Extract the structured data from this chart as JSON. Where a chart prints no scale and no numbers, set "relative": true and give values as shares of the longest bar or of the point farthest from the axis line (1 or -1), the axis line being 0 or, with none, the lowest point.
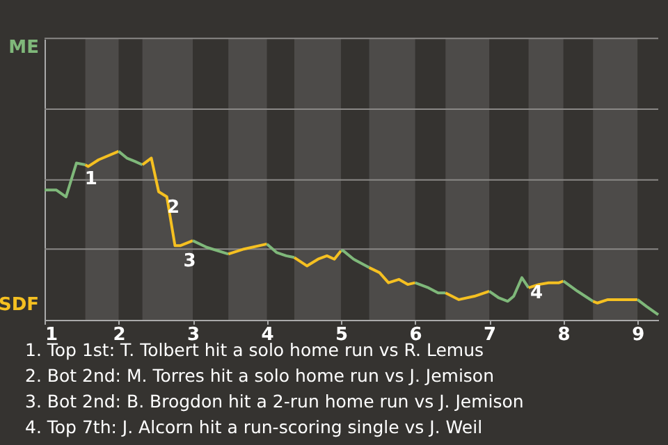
{
  "chart_data": {
    "type": "line",
    "relative": true,
    "xlim": [
      1,
      9.28
    ],
    "xticks": [
      1,
      2,
      3,
      4,
      5,
      6,
      7,
      8,
      9
    ],
    "marker": "none",
    "line_style": "solid",
    "ref_lines": [
      {
        "axis": "y",
        "value": 0.42,
        "color": "#8a8886"
      },
      {
        "axis": "y",
        "value": 0.83,
        "color": "#8a8886"
      },
      {
        "axis": "y",
        "value": 1.25,
        "color": "#8a8886"
      },
      {
        "axis": "y",
        "value": 1.67,
        "color": "#8a8886"
      }
    ],
    "bands": [
      {
        "axis": "x",
        "from": 1.55,
        "to": 2,
        "color": "#4d4b49"
      },
      {
        "axis": "x",
        "from": 2.32,
        "to": 3,
        "color": "#4d4b49"
      },
      {
        "axis": "x",
        "from": 3.48,
        "to": 4,
        "color": "#4d4b49"
      },
      {
        "axis": "x",
        "from": 4.37,
        "to": 5,
        "color": "#4d4b49"
      },
      {
        "axis": "x",
        "from": 5.38,
        "to": 6,
        "color": "#4d4b49"
      },
      {
        "axis": "x",
        "from": 6.41,
        "to": 7,
        "color": "#4d4b49"
      },
      {
        "axis": "x",
        "from": 7.53,
        "to": 8,
        "color": "#4d4b49"
      },
      {
        "axis": "x",
        "from": 8.4,
        "to": 9,
        "color": "#4d4b49"
      }
    ],
    "series": [
      {
        "color": "#7fb87a",
        "x": [
          1.0,
          1.16,
          1.29,
          1.43,
          1.55
        ],
        "values": [
          0.77,
          0.77,
          0.73,
          0.93,
          0.92
        ]
      },
      {
        "color": "#f5c021",
        "x": [
          1.55,
          1.59,
          1.73,
          2.0
        ],
        "values": [
          0.92,
          0.91,
          0.95,
          1.0
        ]
      },
      {
        "color": "#7fb87a",
        "x": [
          2.0,
          2.11,
          2.22,
          2.32
        ],
        "values": [
          1.0,
          0.96,
          0.94,
          0.92
        ]
      },
      {
        "color": "#f5c021",
        "x": [
          2.32,
          2.35,
          2.44,
          2.54,
          2.65,
          2.76,
          2.83,
          3.0
        ],
        "values": [
          0.92,
          0.93,
          0.96,
          0.76,
          0.73,
          0.44,
          0.44,
          0.47
        ]
      },
      {
        "color": "#7fb87a",
        "x": [
          3.0,
          3.19,
          3.48
        ],
        "values": [
          0.47,
          0.43,
          0.39
        ]
      },
      {
        "color": "#f5c021",
        "x": [
          3.48,
          3.69,
          4.0
        ],
        "values": [
          0.39,
          0.42,
          0.45
        ]
      },
      {
        "color": "#7fb87a",
        "x": [
          4.0,
          4.13,
          4.26,
          4.37
        ],
        "values": [
          0.45,
          0.4,
          0.38,
          0.37
        ]
      },
      {
        "color": "#f5c021",
        "x": [
          4.37,
          4.54,
          4.69,
          4.81,
          4.91,
          5.0
        ],
        "values": [
          0.37,
          0.32,
          0.36,
          0.38,
          0.36,
          0.41
        ]
      },
      {
        "color": "#7fb87a",
        "x": [
          5.0,
          5.03,
          5.17,
          5.34,
          5.38
        ],
        "values": [
          0.41,
          0.41,
          0.36,
          0.32,
          0.31
        ]
      },
      {
        "color": "#f5c021",
        "x": [
          5.38,
          5.52,
          5.64,
          5.78,
          5.9,
          6.0
        ],
        "values": [
          0.31,
          0.28,
          0.22,
          0.24,
          0.21,
          0.22
        ]
      },
      {
        "color": "#7fb87a",
        "x": [
          6.0,
          6.18,
          6.31,
          6.41
        ],
        "values": [
          0.22,
          0.19,
          0.16,
          0.16
        ]
      },
      {
        "color": "#f5c021",
        "x": [
          6.41,
          6.59,
          6.8,
          7.0
        ],
        "values": [
          0.16,
          0.12,
          0.14,
          0.17
        ]
      },
      {
        "color": "#7fb87a",
        "x": [
          7.0,
          7.13,
          7.25,
          7.33,
          7.44,
          7.53
        ],
        "values": [
          0.17,
          0.13,
          0.11,
          0.14,
          0.25,
          0.19
        ]
      },
      {
        "color": "#f5c021",
        "x": [
          7.53,
          7.67,
          7.8,
          7.94,
          8.0
        ],
        "values": [
          0.19,
          0.21,
          0.22,
          0.22,
          0.23
        ]
      },
      {
        "color": "#7fb87a",
        "x": [
          8.0,
          8.19,
          8.33,
          8.4
        ],
        "values": [
          0.23,
          0.17,
          0.13,
          0.11
        ]
      },
      {
        "color": "#f5c021",
        "x": [
          8.4,
          8.46,
          8.6,
          9.0
        ],
        "values": [
          0.11,
          0.1,
          0.12,
          0.12
        ]
      },
      {
        "color": "#7fb87a",
        "x": [
          9.0,
          9.12,
          9.28
        ],
        "values": [
          0.12,
          0.08,
          0.03
        ]
      }
    ],
    "annotations": [
      "ME",
      "SDF",
      {
        "text": "1",
        "x": 1.43,
        "y": 0.93
      },
      {
        "text": "2",
        "x": 2.54,
        "y": 0.76
      },
      {
        "text": "3",
        "x": 2.76,
        "y": 0.44
      },
      {
        "text": "4",
        "x": 7.44,
        "y": 0.25
      },
      "1. Top 1st: T. Tolbert hit a solo home run vs R. Lemus",
      "2. Bot 2nd: M. Torres hit a solo home run vs J. Jemison",
      "3. Bot 2nd: B. Brogdon hit a 2-run home run vs J. Jemison",
      "4. Top 7th: J. Alcorn hit a run-scoring single vs J. Weil"
    ]
  }
}
